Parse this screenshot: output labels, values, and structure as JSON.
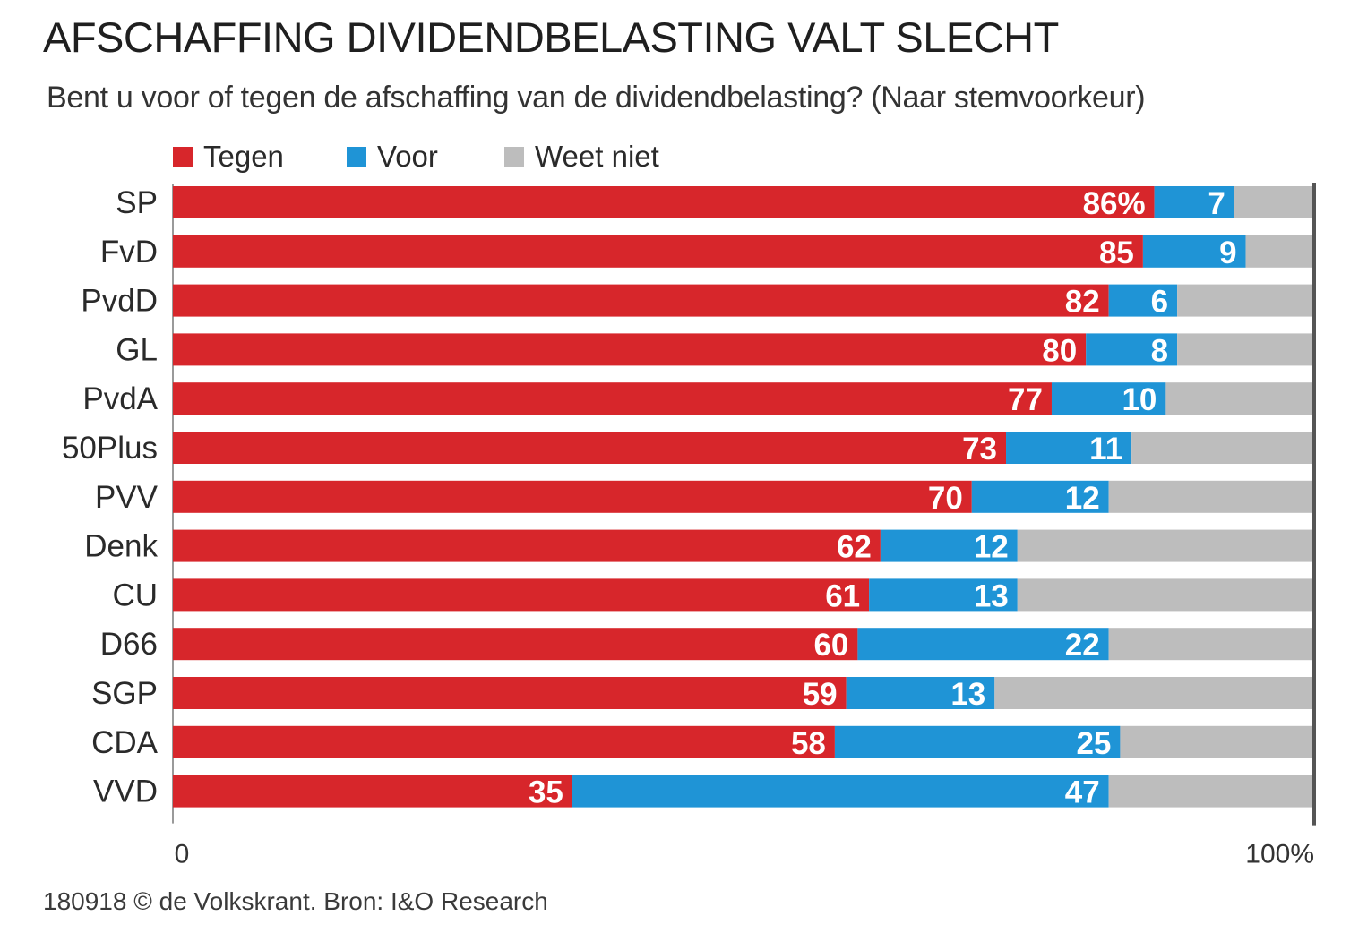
{
  "title": "AFSCHAFFING DIVIDENDBELASTING VALT SLECHT",
  "subtitle": "Bent u voor of tegen de afschaffing van de dividendbelasting? (Naar stemvoorkeur)",
  "footer": "180918 © de Volkskrant. Bron: I&O Research",
  "legend": [
    {
      "label": "Tegen",
      "color": "#d7262b"
    },
    {
      "label": "Voor",
      "color": "#1f94d6"
    },
    {
      "label": "Weet niet",
      "color": "#bdbdbd"
    }
  ],
  "chart_data": {
    "type": "bar",
    "orientation": "horizontal",
    "stacked": true,
    "categories": [
      "SP",
      "FvD",
      "PvdD",
      "GL",
      "PvdA",
      "50Plus",
      "PVV",
      "Denk",
      "CU",
      "D66",
      "SGP",
      "CDA",
      "VVD"
    ],
    "series": [
      {
        "name": "Tegen",
        "color": "#d7262b",
        "values": [
          86,
          85,
          82,
          80,
          77,
          73,
          70,
          62,
          61,
          60,
          59,
          58,
          35
        ],
        "labels": [
          "86%",
          "85",
          "82",
          "80",
          "77",
          "73",
          "70",
          "62",
          "61",
          "60",
          "59",
          "58",
          "35"
        ]
      },
      {
        "name": "Voor",
        "color": "#1f94d6",
        "values": [
          7,
          9,
          6,
          8,
          10,
          11,
          12,
          12,
          13,
          22,
          13,
          25,
          47
        ],
        "labels": [
          "7",
          "9",
          "6",
          "8",
          "10",
          "11",
          "12",
          "12",
          "13",
          "22",
          "13",
          "25",
          "47"
        ]
      },
      {
        "name": "Weet niet",
        "color": "#bdbdbd",
        "values": [
          7,
          6,
          12,
          12,
          13,
          16,
          18,
          26,
          26,
          18,
          28,
          17,
          18
        ]
      }
    ],
    "xlim": [
      0,
      100
    ],
    "xticks": [
      "0",
      "100%"
    ],
    "legend_position": "top-left"
  }
}
